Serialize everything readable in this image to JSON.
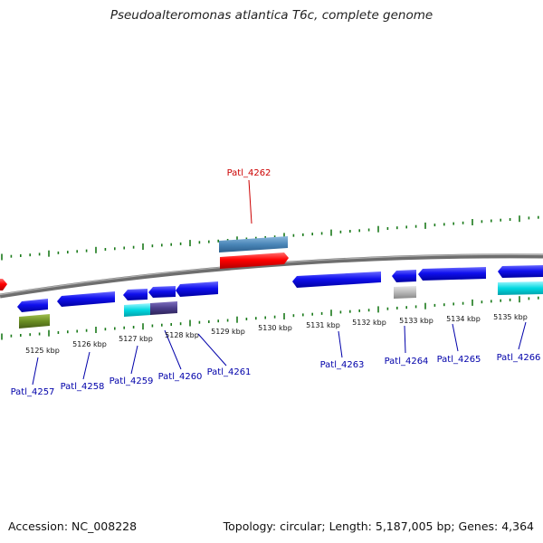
{
  "title": "Pseudoalteromonas atlantica T6c, complete genome",
  "footer": {
    "accession": "Accession: NC_008228",
    "summary": "Topology: circular; Length: 5,187,005 bp; Genes: 4,364"
  },
  "ruler_labels": [
    "5125 kbp",
    "5126 kbp",
    "5127 kbp",
    "5128 kbp",
    "5129 kbp",
    "5130 kbp",
    "5131 kbp",
    "5132 kbp",
    "5133 kbp",
    "5134 kbp",
    "5135 kbp"
  ],
  "gene_labels": [
    {
      "text": "Patl_4262",
      "color": "#cc0000"
    },
    {
      "text": "Patl_4257",
      "color": "#0000aa"
    },
    {
      "text": "Patl_4258",
      "color": "#0000aa"
    },
    {
      "text": "Patl_4259",
      "color": "#0000aa"
    },
    {
      "text": "Patl_4260",
      "color": "#0000aa"
    },
    {
      "text": "Patl_4261",
      "color": "#0000aa"
    },
    {
      "text": "Patl_4263",
      "color": "#0000aa"
    },
    {
      "text": "Patl_4264",
      "color": "#0000aa"
    },
    {
      "text": "Patl_4265",
      "color": "#0000aa"
    },
    {
      "text": "Patl_4266",
      "color": "#0000aa"
    }
  ],
  "colors": {
    "backbone": "#808080",
    "tick": "#1a7a1a",
    "gene_forward": "#ff0000",
    "gene_reverse": "#0000ee",
    "cds_steelblue": "#4a86b8",
    "cds_cyan": "#00d8e0",
    "cds_olive": "#6b8e23",
    "cds_slate": "#4b3d8a",
    "cds_gray": "#b8b8b8"
  }
}
